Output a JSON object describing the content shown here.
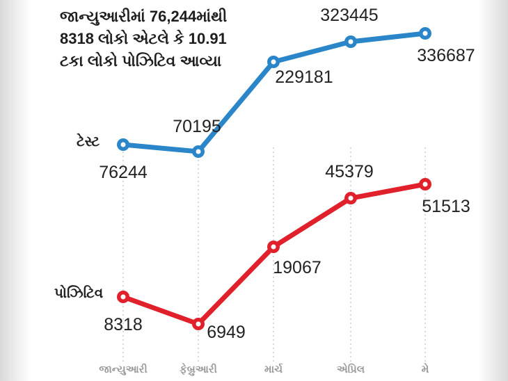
{
  "headline": {
    "lines": [
      "જાન્યુઆરીમાં 76,244માંથી",
      "8318 લોકો એટલે કે 10.91",
      "ટકા લોકો પોઝિટિવ આવ્યા"
    ]
  },
  "colors": {
    "tests": "#2a86c8",
    "positives": "#e0202a",
    "grid": "#bdbdbd",
    "text": "#222222",
    "month_text": "#9a9a9a"
  },
  "chart_data": {
    "type": "line",
    "categories": [
      "જાન્યુઆરી",
      "ફેબ્રુઆરી",
      "માર્ચ",
      "એપ્રિલ",
      "મે"
    ],
    "series": [
      {
        "name": "ટેસ્ટ",
        "color": "#2a86c8",
        "values": [
          76244,
          70195,
          229181,
          323445,
          336687
        ]
      },
      {
        "name": "પોઝિટિવ",
        "color": "#e0202a",
        "values": [
          8318,
          6949,
          19067,
          45379,
          51513
        ]
      }
    ],
    "grid": "vertical-dashed",
    "legend": "inline-left"
  }
}
